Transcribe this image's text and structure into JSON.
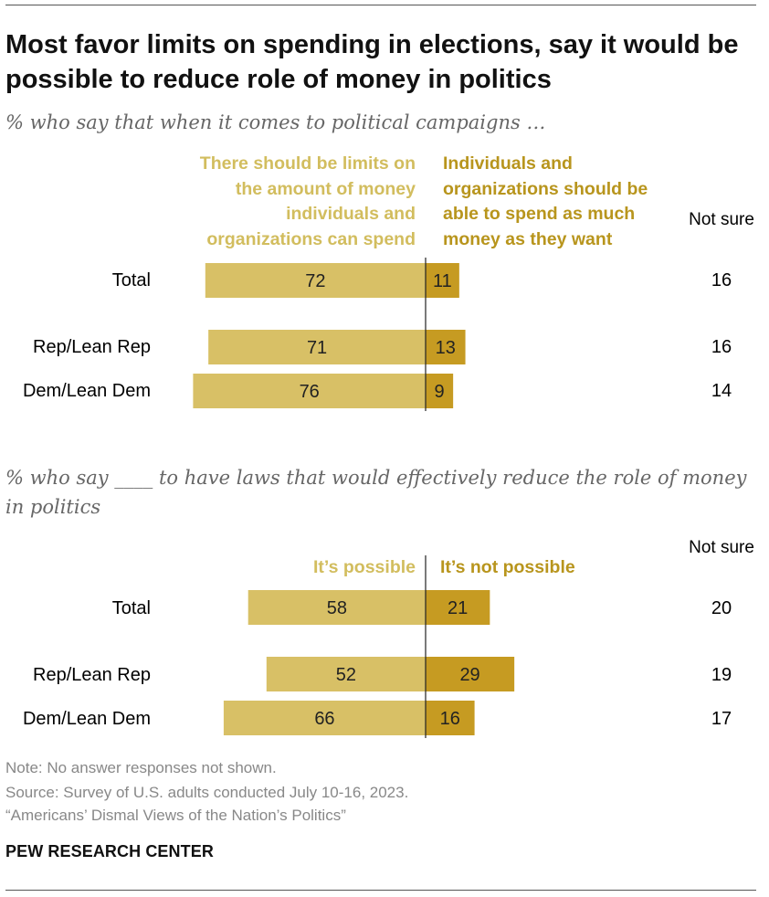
{
  "title": "Most favor limits on spending in elections, say it would be possible to reduce role of money in politics",
  "colors": {
    "left_bar": "#d8c066",
    "right_bar": "#c69b22",
    "left_legend": "#d2bd5e",
    "right_legend": "#b8951d",
    "axis": "#222222"
  },
  "panels": [
    {
      "subtitle": "% who say that when it comes to political campaigns …",
      "legend_left": "There should be limits on the amount of money individuals and organizations can spend",
      "legend_right": "Individuals and organizations should be able to spend as much money as they want",
      "not_sure_header": "Not sure"
    },
    {
      "subtitle": "% who say ____ to have laws that would effectively reduce the role of money in politics",
      "legend_left": "It’s possible",
      "legend_right": "It’s not possible",
      "not_sure_header": "Not sure"
    }
  ],
  "chart_data": [
    {
      "type": "bar",
      "orientation": "horizontal-diverging",
      "categories": [
        "Total",
        "Rep/Lean Rep",
        "Dem/Lean Dem"
      ],
      "series": [
        {
          "name": "There should be limits on the amount of money individuals and organizations can spend",
          "values": [
            72,
            71,
            76
          ]
        },
        {
          "name": "Individuals and organizations should be able to spend as much money as they want",
          "values": [
            11,
            13,
            9
          ]
        },
        {
          "name": "Not sure",
          "values": [
            16,
            16,
            14
          ]
        }
      ]
    },
    {
      "type": "bar",
      "orientation": "horizontal-diverging",
      "categories": [
        "Total",
        "Rep/Lean Rep",
        "Dem/Lean Dem"
      ],
      "series": [
        {
          "name": "It’s possible",
          "values": [
            58,
            52,
            66
          ]
        },
        {
          "name": "It’s not possible",
          "values": [
            21,
            29,
            16
          ]
        },
        {
          "name": "Not sure",
          "values": [
            20,
            19,
            17
          ]
        }
      ]
    }
  ],
  "footer": {
    "note": "Note: No answer responses not shown.",
    "source": "Source: Survey of U.S. adults conducted July 10-16, 2023.",
    "report": "“Americans’ Dismal Views of the Nation’s Politics”",
    "brand": "PEW RESEARCH CENTER"
  }
}
